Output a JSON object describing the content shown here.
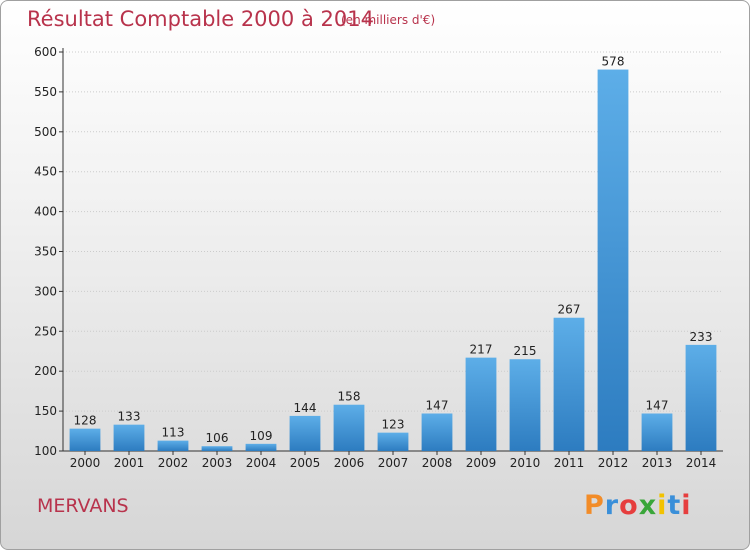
{
  "title": "Résultat Comptable 2000 à 2014",
  "subtitle": "(en milliers d'€)",
  "commune": "MERVANS",
  "logo": {
    "letters": [
      "P",
      "r",
      "o",
      "x",
      "i",
      "t",
      "i"
    ],
    "colors": [
      "#f28c28",
      "#3a8fd9",
      "#e63e3e",
      "#3aa63a",
      "#f2c200",
      "#3a8fd9",
      "#e63e3e"
    ]
  },
  "colors": {
    "bar_light": "#5daee8",
    "bar_dark": "#2d7cc0",
    "title": "#b8334c",
    "axis": "#333333",
    "grid": "#cccccc"
  },
  "chart_data": {
    "type": "bar",
    "categories": [
      "2000",
      "2001",
      "2002",
      "2003",
      "2004",
      "2005",
      "2006",
      "2007",
      "2008",
      "2009",
      "2010",
      "2011",
      "2012",
      "2013",
      "2014"
    ],
    "values": [
      128,
      133,
      113,
      106,
      109,
      144,
      158,
      123,
      147,
      217,
      215,
      267,
      578,
      147,
      233
    ],
    "yticks": [
      100,
      150,
      200,
      250,
      300,
      350,
      400,
      450,
      500,
      550,
      600
    ],
    "ylim": [
      100,
      600
    ],
    "grid": true,
    "data_labels": true
  }
}
